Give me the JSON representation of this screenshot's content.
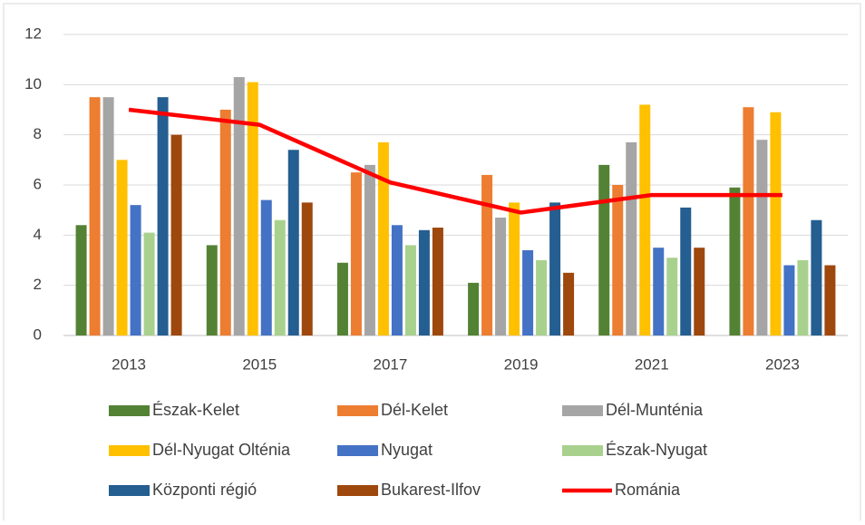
{
  "chart_data": {
    "type": "bar",
    "categories": [
      "2013",
      "2015",
      "2017",
      "2019",
      "2021",
      "2023"
    ],
    "series": [
      {
        "name": "Észak-Kelet",
        "color": "#548235",
        "values": [
          4.4,
          3.6,
          2.9,
          2.1,
          6.8,
          5.9
        ]
      },
      {
        "name": "Dél-Kelet",
        "color": "#ed7d31",
        "values": [
          9.5,
          9.0,
          6.5,
          6.4,
          6.0,
          9.1
        ]
      },
      {
        "name": "Dél-Munténia",
        "color": "#a5a5a5",
        "values": [
          9.5,
          10.3,
          6.8,
          4.7,
          7.7,
          7.8
        ]
      },
      {
        "name": "Dél-Nyugat Olténia",
        "color": "#ffc000",
        "values": [
          7.0,
          10.1,
          7.7,
          5.3,
          9.2,
          8.9
        ]
      },
      {
        "name": "Nyugat",
        "color": "#4472c4",
        "values": [
          5.2,
          5.4,
          4.4,
          3.4,
          3.5,
          2.8
        ]
      },
      {
        "name": "Észak-Nyugat",
        "color": "#a9d18e",
        "values": [
          4.1,
          4.6,
          3.6,
          3.0,
          3.1,
          3.0
        ]
      },
      {
        "name": "Központi régió",
        "color": "#255e91",
        "values": [
          9.5,
          7.4,
          4.2,
          5.3,
          5.1,
          4.6
        ]
      },
      {
        "name": "Bukarest-Ilfov",
        "color": "#9e480e",
        "values": [
          8.0,
          5.3,
          4.3,
          2.5,
          3.5,
          2.8
        ]
      },
      {
        "name": "Románia",
        "color": "#ff0000",
        "type": "line",
        "values": [
          9.0,
          8.4,
          6.1,
          4.9,
          5.6,
          5.6
        ]
      }
    ],
    "ylim": [
      0,
      12
    ],
    "yticks": [
      0,
      2,
      4,
      6,
      8,
      10,
      12
    ],
    "grid": true,
    "legend": "bottom"
  }
}
